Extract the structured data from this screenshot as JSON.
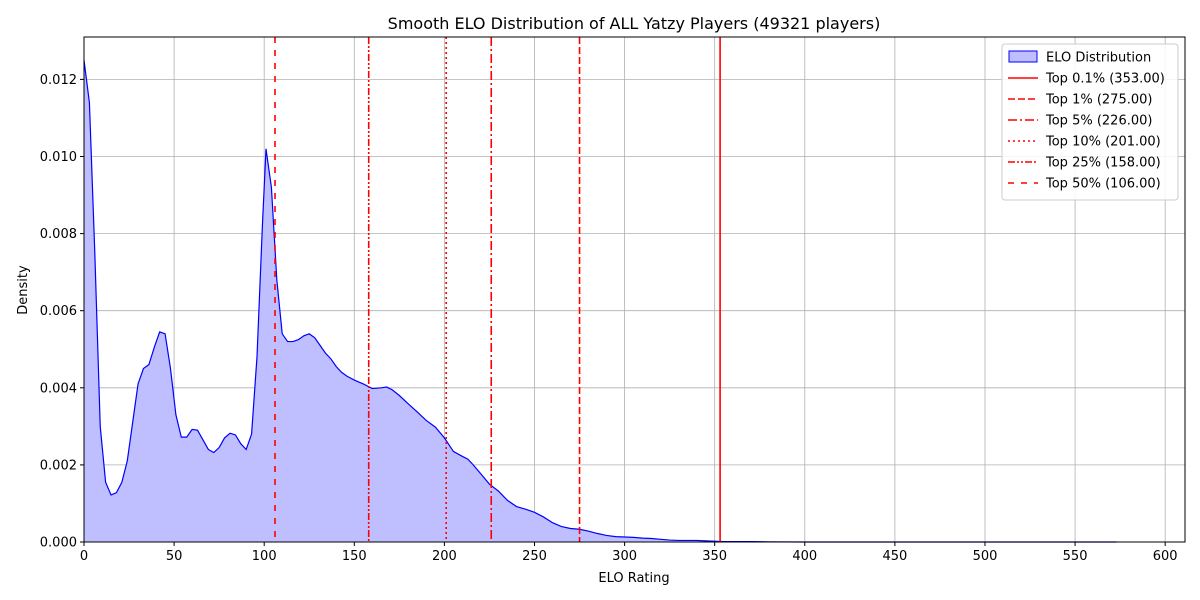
{
  "chart_data": {
    "type": "area",
    "title": "Smooth ELO Distribution of ALL Yatzy Players (49321 players)",
    "xlabel": "ELO Rating",
    "ylabel": "Density",
    "xlim": [
      0,
      611
    ],
    "ylim": [
      0,
      0.0131
    ],
    "xticks": [
      0,
      50,
      100,
      150,
      200,
      250,
      300,
      350,
      400,
      450,
      500,
      550,
      600
    ],
    "yticks": [
      0.0,
      0.002,
      0.004,
      0.006,
      0.008,
      0.01,
      0.012
    ],
    "ytick_labels": [
      "0.000",
      "0.002",
      "0.004",
      "0.006",
      "0.008",
      "0.010",
      "0.012"
    ],
    "grid": true,
    "legend_position": "top-right",
    "series": [
      {
        "name": "ELO Distribution",
        "color": "#0000ff",
        "fill": "#bfbfff",
        "x": [
          0,
          3,
          6,
          9,
          12,
          15,
          18,
          21,
          24,
          27,
          30,
          33,
          36,
          39,
          42,
          45,
          48,
          51,
          54,
          57,
          60,
          63,
          66,
          69,
          72,
          75,
          78,
          81,
          84,
          87,
          90,
          93,
          96,
          99,
          101,
          104,
          107,
          110,
          113,
          116,
          119,
          122,
          125,
          128,
          131,
          134,
          137,
          140,
          143,
          146,
          150,
          155,
          160,
          165,
          168,
          171,
          175,
          180,
          185,
          190,
          195,
          200,
          205,
          210,
          213,
          216,
          220,
          225,
          230,
          235,
          240,
          245,
          250,
          255,
          260,
          265,
          270,
          275,
          280,
          285,
          290,
          295,
          300,
          305,
          310,
          315,
          320,
          325,
          330,
          335,
          340,
          345,
          350,
          355,
          360,
          365,
          370,
          380,
          400,
          450,
          500,
          550,
          573
        ],
        "values": [
          0.0125,
          0.0114,
          0.0075,
          0.003,
          0.00155,
          0.00122,
          0.00128,
          0.00155,
          0.0021,
          0.0031,
          0.0041,
          0.0045,
          0.0046,
          0.00505,
          0.00545,
          0.0054,
          0.0045,
          0.0033,
          0.00272,
          0.00272,
          0.00292,
          0.0029,
          0.00265,
          0.0024,
          0.00232,
          0.00245,
          0.0027,
          0.00282,
          0.00278,
          0.00255,
          0.0024,
          0.0028,
          0.0048,
          0.0082,
          0.0102,
          0.0092,
          0.0068,
          0.0054,
          0.0052,
          0.0052,
          0.00525,
          0.00535,
          0.0054,
          0.0053,
          0.0051,
          0.0049,
          0.00475,
          0.00455,
          0.0044,
          0.0043,
          0.0042,
          0.0041,
          0.00398,
          0.004,
          0.00402,
          0.00395,
          0.0038,
          0.00358,
          0.00337,
          0.00315,
          0.00298,
          0.0027,
          0.00235,
          0.00222,
          0.00215,
          0.002,
          0.00178,
          0.0015,
          0.00132,
          0.00108,
          0.00092,
          0.00085,
          0.00077,
          0.00065,
          0.0005,
          0.0004,
          0.00035,
          0.00033,
          0.00028,
          0.00022,
          0.00017,
          0.00014,
          0.00013,
          0.00012,
          0.0001,
          9e-05,
          7e-05,
          5e-05,
          4e-05,
          4e-05,
          4e-05,
          3e-05,
          2e-05,
          1e-05,
          1e-05,
          1e-05,
          1e-05,
          5e-06,
          0.0,
          0.0,
          0.0,
          0.0,
          0.0
        ]
      }
    ],
    "vlines": [
      {
        "label": "Top 0.1% (353.00)",
        "x": 353,
        "color": "#ff0000",
        "style": "solid"
      },
      {
        "label": "Top 1% (275.00)",
        "x": 275,
        "color": "#ff0000",
        "style": "dashed"
      },
      {
        "label": "Top 5% (226.00)",
        "x": 226,
        "color": "#ff0000",
        "style": "dashdot"
      },
      {
        "label": "Top 10% (201.00)",
        "x": 201,
        "color": "#ff0000",
        "style": "dotted"
      },
      {
        "label": "Top 25% (158.00)",
        "x": 158,
        "color": "#ff0000",
        "style": "dashdotdot"
      },
      {
        "label": "Top 50% (106.00)",
        "x": 106,
        "color": "#ff0000",
        "style": "loose"
      }
    ]
  }
}
